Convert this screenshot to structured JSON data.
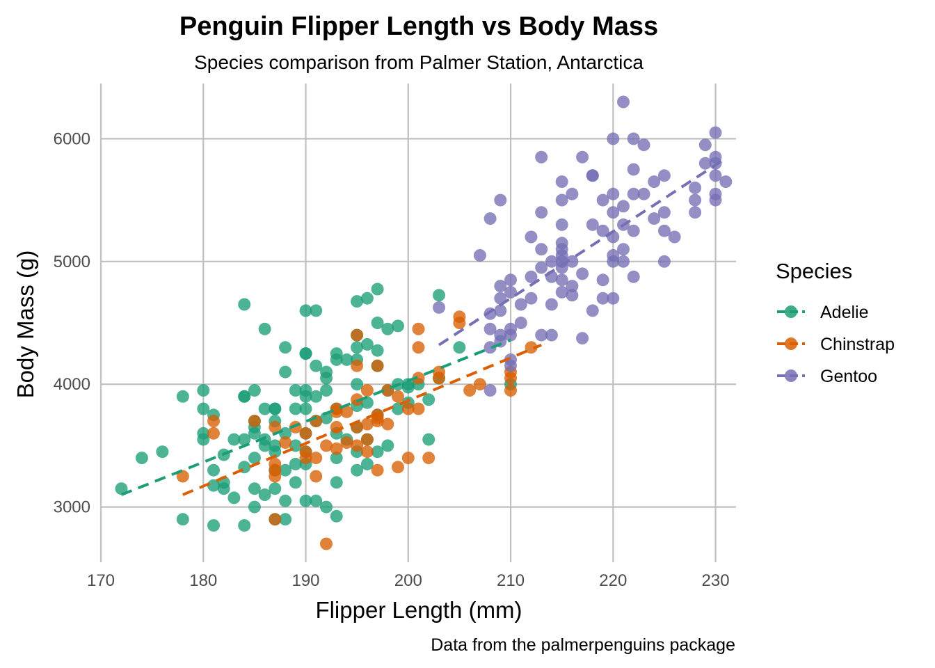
{
  "chart_data": {
    "type": "scatter",
    "title": "Penguin Flipper Length vs Body Mass",
    "subtitle": "Species comparison from Palmer Station, Antarctica",
    "caption": "Data from the palmerpenguins package",
    "xlabel": "Flipper Length (mm)",
    "ylabel": "Body Mass (g)",
    "xlim": [
      170,
      232
    ],
    "ylim": [
      2550,
      6450
    ],
    "xticks": [
      170,
      180,
      190,
      200,
      210,
      220,
      230
    ],
    "yticks": [
      3000,
      4000,
      5000,
      6000
    ],
    "grid": true,
    "legend": {
      "title": "Species",
      "position": "right"
    },
    "series": [
      {
        "name": "Adelie",
        "color": "#1b9e77",
        "trend": {
          "x": [
            172,
            210
          ],
          "y": [
            3100,
            4360
          ]
        },
        "points": [
          [
            172,
            3150
          ],
          [
            174,
            3400
          ],
          [
            176,
            3450
          ],
          [
            178,
            3900
          ],
          [
            178,
            2900
          ],
          [
            180,
            3950
          ],
          [
            180,
            3800
          ],
          [
            180,
            3600
          ],
          [
            180,
            3550
          ],
          [
            181,
            3750
          ],
          [
            181,
            3300
          ],
          [
            181,
            3175
          ],
          [
            181,
            2850
          ],
          [
            182,
            3200
          ],
          [
            182,
            3150
          ],
          [
            182,
            3425
          ],
          [
            183,
            3550
          ],
          [
            183,
            3075
          ],
          [
            184,
            4650
          ],
          [
            184,
            3900
          ],
          [
            184,
            3900
          ],
          [
            184,
            3550
          ],
          [
            184,
            3325
          ],
          [
            184,
            2850
          ],
          [
            185,
            3950
          ],
          [
            185,
            3700
          ],
          [
            185,
            3650
          ],
          [
            185,
            3600
          ],
          [
            185,
            3400
          ],
          [
            185,
            3150
          ],
          [
            185,
            3000
          ],
          [
            186,
            4450
          ],
          [
            186,
            3800
          ],
          [
            186,
            3550
          ],
          [
            186,
            3500
          ],
          [
            186,
            3100
          ],
          [
            187,
            3800
          ],
          [
            187,
            3800
          ],
          [
            187,
            3700
          ],
          [
            187,
            3500
          ],
          [
            187,
            3450
          ],
          [
            187,
            3300
          ],
          [
            187,
            3150
          ],
          [
            187,
            2900
          ],
          [
            188,
            4300
          ],
          [
            188,
            4100
          ],
          [
            188,
            3600
          ],
          [
            188,
            3300
          ],
          [
            188,
            3050
          ],
          [
            188,
            2900
          ],
          [
            189,
            3950
          ],
          [
            189,
            3800
          ],
          [
            189,
            3500
          ],
          [
            189,
            3350
          ],
          [
            189,
            3200
          ],
          [
            190,
            4600
          ],
          [
            190,
            4250
          ],
          [
            190,
            4250
          ],
          [
            190,
            3950
          ],
          [
            190,
            3900
          ],
          [
            190,
            3800
          ],
          [
            190,
            3600
          ],
          [
            190,
            3450
          ],
          [
            190,
            3350
          ],
          [
            190,
            3050
          ],
          [
            191,
            4600
          ],
          [
            191,
            4150
          ],
          [
            191,
            3900
          ],
          [
            191,
            3700
          ],
          [
            191,
            3050
          ],
          [
            192,
            4100
          ],
          [
            192,
            4050
          ],
          [
            192,
            3950
          ],
          [
            192,
            3725
          ],
          [
            192,
            3000
          ],
          [
            193,
            4250
          ],
          [
            193,
            4200
          ],
          [
            193,
            3800
          ],
          [
            193,
            3600
          ],
          [
            193,
            3400
          ],
          [
            193,
            3200
          ],
          [
            193,
            2925
          ],
          [
            194,
            4200
          ],
          [
            194,
            3550
          ],
          [
            195,
            4675
          ],
          [
            195,
            4400
          ],
          [
            195,
            4300
          ],
          [
            195,
            4200
          ],
          [
            195,
            4000
          ],
          [
            195,
            3825
          ],
          [
            195,
            3650
          ],
          [
            195,
            3450
          ],
          [
            195,
            3300
          ],
          [
            196,
            4700
          ],
          [
            196,
            4325
          ],
          [
            196,
            3850
          ],
          [
            196,
            3550
          ],
          [
            196,
            3350
          ],
          [
            197,
            4775
          ],
          [
            197,
            4500
          ],
          [
            197,
            4275
          ],
          [
            197,
            4150
          ],
          [
            197,
            3750
          ],
          [
            197,
            3450
          ],
          [
            198,
            4450
          ],
          [
            198,
            3950
          ],
          [
            198,
            3500
          ],
          [
            199,
            4475
          ],
          [
            199,
            4000
          ],
          [
            199,
            3800
          ],
          [
            200,
            4000
          ],
          [
            200,
            3975
          ],
          [
            200,
            3850
          ],
          [
            201,
            4000
          ],
          [
            202,
            3875
          ],
          [
            202,
            3550
          ],
          [
            203,
            4725
          ],
          [
            203,
            4050
          ],
          [
            205,
            4300
          ],
          [
            210,
            4000
          ]
        ]
      },
      {
        "name": "Chinstrap",
        "color": "#d95f02",
        "trend": {
          "x": [
            178,
            213
          ],
          "y": [
            3100,
            4320
          ]
        },
        "points": [
          [
            178,
            3250
          ],
          [
            181,
            3700
          ],
          [
            181,
            3600
          ],
          [
            185,
            3700
          ],
          [
            187,
            3650
          ],
          [
            187,
            3350
          ],
          [
            187,
            3250
          ],
          [
            187,
            3300
          ],
          [
            187,
            2900
          ],
          [
            188,
            3525
          ],
          [
            189,
            3650
          ],
          [
            190,
            3600
          ],
          [
            190,
            3450
          ],
          [
            190,
            3400
          ],
          [
            191,
            3400
          ],
          [
            191,
            3250
          ],
          [
            191,
            3700
          ],
          [
            192,
            2700
          ],
          [
            192,
            3500
          ],
          [
            193,
            3800
          ],
          [
            193,
            3650
          ],
          [
            193,
            3775
          ],
          [
            193,
            3475
          ],
          [
            194,
            3525
          ],
          [
            194,
            3775
          ],
          [
            195,
            4400
          ],
          [
            195,
            4150
          ],
          [
            195,
            3875
          ],
          [
            195,
            3650
          ],
          [
            195,
            3500
          ],
          [
            196,
            3675
          ],
          [
            196,
            3450
          ],
          [
            196,
            3550
          ],
          [
            196,
            3950
          ],
          [
            197,
            3750
          ],
          [
            197,
            3725
          ],
          [
            197,
            3700
          ],
          [
            197,
            4150
          ],
          [
            197,
            3300
          ],
          [
            198,
            3950
          ],
          [
            198,
            3675
          ],
          [
            199,
            3900
          ],
          [
            199,
            3325
          ],
          [
            200,
            3800
          ],
          [
            200,
            3400
          ],
          [
            201,
            4450
          ],
          [
            201,
            4300
          ],
          [
            201,
            4050
          ],
          [
            201,
            3800
          ],
          [
            202,
            3400
          ],
          [
            203,
            4100
          ],
          [
            203,
            4050
          ],
          [
            205,
            4550
          ],
          [
            205,
            4500
          ],
          [
            206,
            3950
          ],
          [
            207,
            4000
          ],
          [
            210,
            4100
          ],
          [
            210,
            3950
          ],
          [
            212,
            4300
          ],
          [
            210,
            4050
          ]
        ]
      },
      {
        "name": "Gentoo",
        "color": "#7570b3",
        "trend": {
          "x": [
            203,
            231
          ],
          "y": [
            4320,
            5840
          ]
        },
        "points": [
          [
            203,
            4625
          ],
          [
            207,
            5050
          ],
          [
            208,
            5350
          ],
          [
            208,
            4575
          ],
          [
            208,
            4450
          ],
          [
            208,
            4300
          ],
          [
            208,
            3950
          ],
          [
            209,
            5500
          ],
          [
            209,
            4800
          ],
          [
            209,
            4700
          ],
          [
            209,
            4600
          ],
          [
            209,
            4400
          ],
          [
            209,
            4350
          ],
          [
            210,
            4850
          ],
          [
            210,
            4750
          ],
          [
            210,
            4450
          ],
          [
            210,
            4400
          ],
          [
            210,
            4200
          ],
          [
            210,
            4150
          ],
          [
            211,
            4650
          ],
          [
            211,
            4500
          ],
          [
            212,
            5200
          ],
          [
            212,
            4875
          ],
          [
            212,
            4700
          ],
          [
            213,
            5850
          ],
          [
            213,
            5400
          ],
          [
            213,
            5100
          ],
          [
            213,
            4950
          ],
          [
            213,
            4400
          ],
          [
            214,
            5000
          ],
          [
            214,
            4875
          ],
          [
            214,
            4650
          ],
          [
            214,
            4400
          ],
          [
            215,
            5650
          ],
          [
            215,
            5500
          ],
          [
            215,
            5300
          ],
          [
            215,
            5150
          ],
          [
            215,
            5100
          ],
          [
            215,
            5050
          ],
          [
            215,
            5000
          ],
          [
            215,
            4950
          ],
          [
            215,
            4850
          ],
          [
            215,
            4750
          ],
          [
            216,
            5550
          ],
          [
            216,
            5000
          ],
          [
            216,
            4800
          ],
          [
            216,
            4725
          ],
          [
            217,
            5850
          ],
          [
            217,
            4900
          ],
          [
            217,
            4375
          ],
          [
            218,
            5700
          ],
          [
            218,
            5300
          ],
          [
            218,
            4600
          ],
          [
            218,
            5700
          ],
          [
            219,
            5500
          ],
          [
            219,
            5250
          ],
          [
            219,
            4850
          ],
          [
            219,
            4700
          ],
          [
            220,
            6000
          ],
          [
            220,
            5550
          ],
          [
            220,
            5400
          ],
          [
            220,
            5200
          ],
          [
            220,
            5050
          ],
          [
            220,
            5000
          ],
          [
            220,
            4700
          ],
          [
            221,
            6300
          ],
          [
            221,
            5450
          ],
          [
            221,
            5300
          ],
          [
            221,
            5100
          ],
          [
            221,
            5000
          ],
          [
            222,
            6000
          ],
          [
            222,
            5750
          ],
          [
            222,
            5550
          ],
          [
            222,
            5250
          ],
          [
            222,
            4875
          ],
          [
            223,
            5950
          ],
          [
            223,
            5550
          ],
          [
            224,
            5650
          ],
          [
            224,
            5350
          ],
          [
            225,
            5700
          ],
          [
            225,
            5400
          ],
          [
            225,
            5250
          ],
          [
            225,
            5000
          ],
          [
            226,
            5200
          ],
          [
            228,
            5600
          ],
          [
            228,
            5500
          ],
          [
            228,
            5400
          ],
          [
            229,
            5950
          ],
          [
            229,
            5800
          ],
          [
            230,
            6050
          ],
          [
            230,
            5850
          ],
          [
            230,
            5700
          ],
          [
            230,
            5800
          ],
          [
            230,
            5550
          ],
          [
            230,
            5500
          ],
          [
            231,
            5650
          ]
        ]
      }
    ]
  }
}
